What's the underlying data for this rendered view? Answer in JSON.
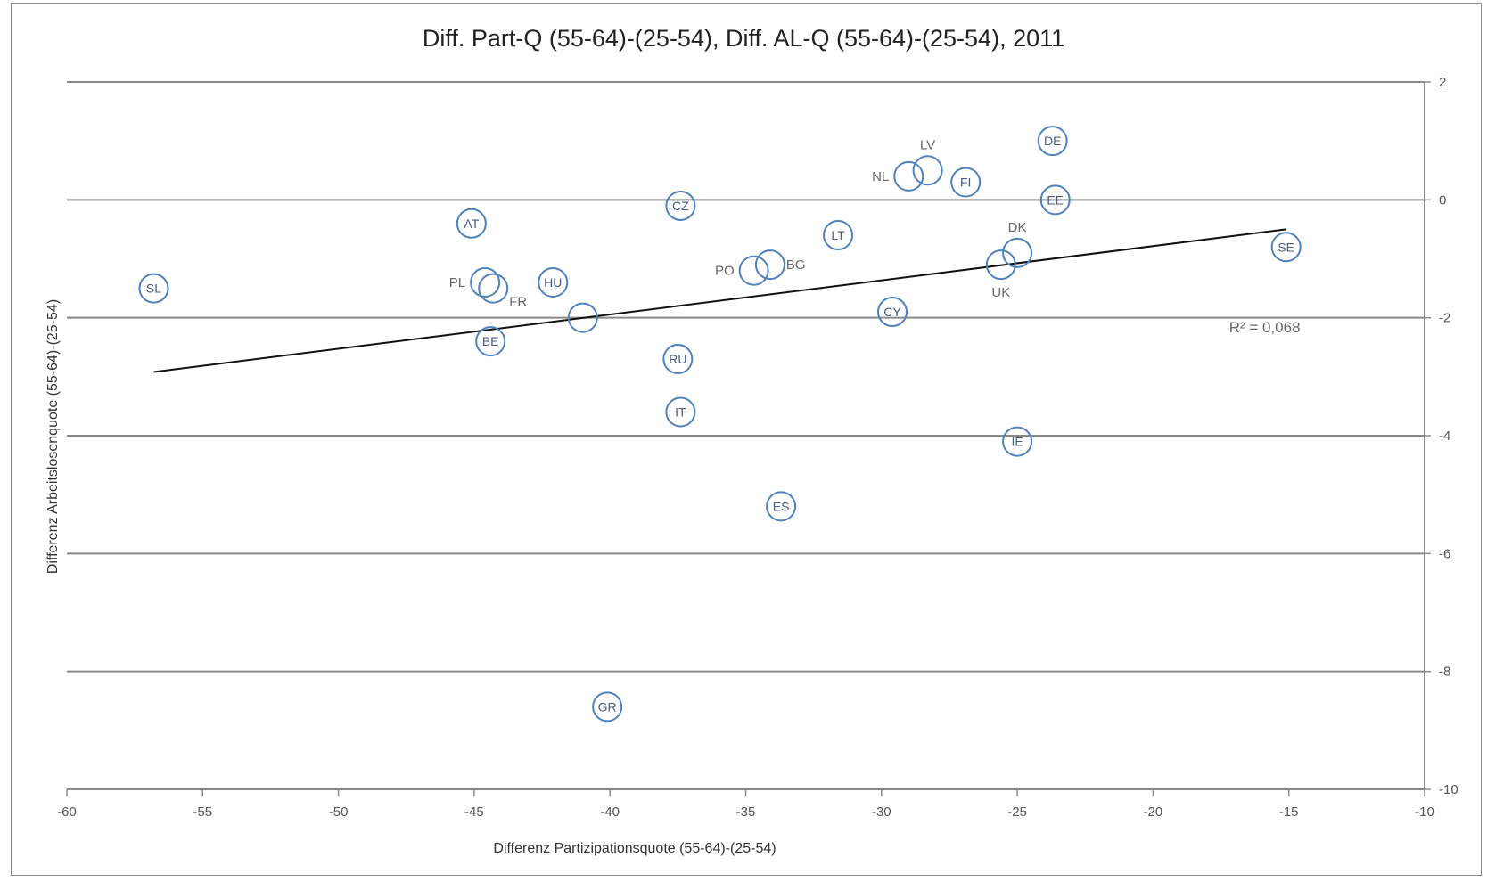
{
  "chart_data": {
    "type": "scatter",
    "title": "Diff. Part-Q (55-64)-(25-54), Diff. AL-Q (55-64)-(25-54), 2011",
    "xlabel": "Differenz Partizipationsquote (55-64)-(25-54)",
    "ylabel": "Differenz Arbeitslosenquote (55-64)-(25-54)",
    "xlim": [
      -60,
      -10
    ],
    "ylim": [
      -10,
      2
    ],
    "x_ticks": [
      "-60",
      "-55",
      "-50",
      "-45",
      "-40",
      "-35",
      "-30",
      "-25",
      "-20",
      "-15",
      "-10"
    ],
    "y_ticks": [
      "2",
      "0",
      "-2",
      "-4",
      "-6",
      "-8",
      "-10"
    ],
    "y_axis_side": "right",
    "grid": "horizontal",
    "legend": "none",
    "marker": "open-circle",
    "marker_color": "#4f81bd",
    "points": [
      {
        "label": "SL",
        "x": -56.8,
        "y": -1.5,
        "label_pos": "inside"
      },
      {
        "label": "AT",
        "x": -45.1,
        "y": -0.4,
        "label_pos": "inside"
      },
      {
        "label": "PL",
        "x": -44.6,
        "y": -1.4,
        "label_pos": "left"
      },
      {
        "label": "FR",
        "x": -44.3,
        "y": -1.5,
        "label_pos": "below-right"
      },
      {
        "label": "BE",
        "x": -44.4,
        "y": -2.4,
        "label_pos": "inside"
      },
      {
        "label": "HU",
        "x": -42.1,
        "y": -1.4,
        "label_pos": "inside"
      },
      {
        "label": "",
        "x": -41.0,
        "y": -2.0,
        "label_pos": "inside"
      },
      {
        "label": "GR",
        "x": -40.1,
        "y": -8.6,
        "label_pos": "inside"
      },
      {
        "label": "CZ",
        "x": -37.4,
        "y": -0.1,
        "label_pos": "inside"
      },
      {
        "label": "RU",
        "x": -37.5,
        "y": -2.7,
        "label_pos": "inside"
      },
      {
        "label": "IT",
        "x": -37.4,
        "y": -3.6,
        "label_pos": "inside"
      },
      {
        "label": "PO",
        "x": -34.7,
        "y": -1.2,
        "label_pos": "left"
      },
      {
        "label": "BG",
        "x": -34.1,
        "y": -1.1,
        "label_pos": "right"
      },
      {
        "label": "ES",
        "x": -33.7,
        "y": -5.2,
        "label_pos": "inside"
      },
      {
        "label": "LT",
        "x": -31.6,
        "y": -0.6,
        "label_pos": "inside"
      },
      {
        "label": "CY",
        "x": -29.6,
        "y": -1.9,
        "label_pos": "inside"
      },
      {
        "label": "NL",
        "x": -29.0,
        "y": 0.4,
        "label_pos": "left"
      },
      {
        "label": "LV",
        "x": -28.3,
        "y": 0.5,
        "label_pos": "above"
      },
      {
        "label": "FI",
        "x": -26.9,
        "y": 0.3,
        "label_pos": "inside"
      },
      {
        "label": "UK",
        "x": -25.6,
        "y": -1.1,
        "label_pos": "below"
      },
      {
        "label": "DK",
        "x": -25.0,
        "y": -0.9,
        "label_pos": "above"
      },
      {
        "label": "IE",
        "x": -25.0,
        "y": -4.1,
        "label_pos": "inside"
      },
      {
        "label": "DE",
        "x": -23.7,
        "y": 1.0,
        "label_pos": "inside"
      },
      {
        "label": "EE",
        "x": -23.6,
        "y": 0.0,
        "label_pos": "inside"
      },
      {
        "label": "SE",
        "x": -15.1,
        "y": -0.8,
        "label_pos": "inside"
      }
    ],
    "trendline": {
      "type": "linear",
      "x": [
        -56.8,
        -15.1
      ],
      "y": [
        -2.92,
        -0.5
      ],
      "r2_label": "R² = 0,068"
    }
  }
}
